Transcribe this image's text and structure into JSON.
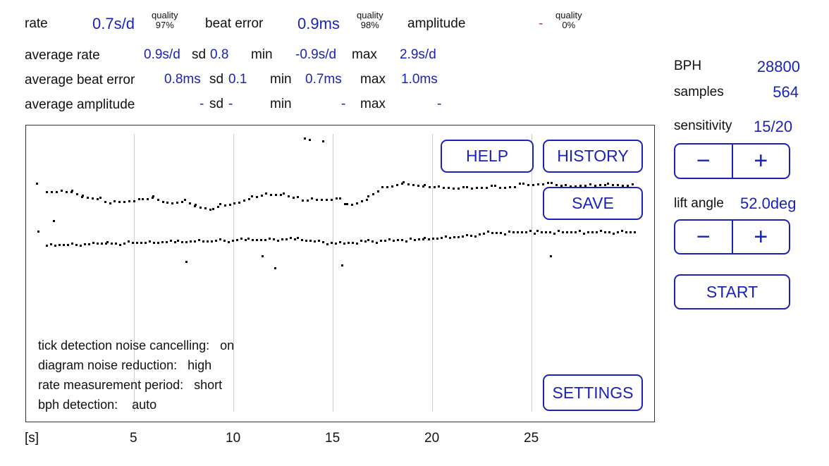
{
  "current": {
    "rate_label": "rate",
    "rate_value": "0.7s/d",
    "rate_quality_label": "quality",
    "rate_quality": "97%",
    "beat_label": "beat error",
    "beat_value": "0.9ms",
    "beat_quality_label": "quality",
    "beat_quality": "98%",
    "amp_label": "amplitude",
    "amp_value": "-",
    "amp_quality_label": "quality",
    "amp_quality": "0%"
  },
  "averages": [
    {
      "label": "average rate",
      "value": "0.9s/d",
      "sd_label": "sd",
      "sd": "0.8",
      "min_label": "min",
      "min": "-0.9s/d",
      "max_label": "max",
      "max": "2.9s/d"
    },
    {
      "label": "average beat error",
      "value": "0.8ms",
      "sd_label": "sd",
      "sd": "0.1",
      "min_label": "min",
      "min": "0.7ms",
      "max_label": "max",
      "max": "1.0ms"
    },
    {
      "label": "average amplitude",
      "value": "-",
      "sd_label": "sd",
      "sd": "-",
      "min_label": "min",
      "min": "-",
      "max_label": "max",
      "max": "-"
    }
  ],
  "right": {
    "bph_label": "BPH",
    "bph": "28800",
    "samples_label": "samples",
    "samples": "564",
    "sens_label": "sensitivity",
    "sens": "15/20",
    "lift_label": "lift angle",
    "lift": "52.0deg",
    "minus": "−",
    "plus": "+",
    "start": "START"
  },
  "buttons": {
    "help": "HELP",
    "history": "HISTORY",
    "save": "SAVE",
    "settings": "SETTINGS"
  },
  "info": [
    {
      "label": "tick detection noise cancelling:",
      "value": "on"
    },
    {
      "label": "diagram noise reduction:",
      "value": "high"
    },
    {
      "label": "rate measurement period:",
      "value": "short"
    },
    {
      "label": "bph detection:",
      "value": "auto"
    }
  ],
  "axis": {
    "unit": "[s]",
    "ticks": [
      "5",
      "10",
      "15",
      "20",
      "25"
    ]
  }
}
